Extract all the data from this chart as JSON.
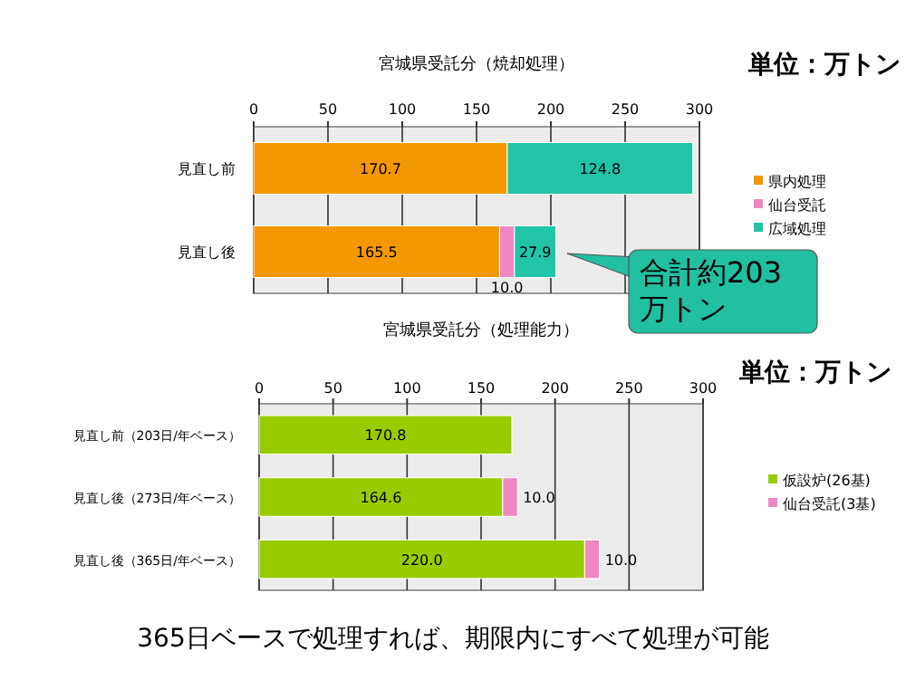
{
  "chart_data": [
    {
      "type": "bar",
      "orientation": "horizontal",
      "stacked": true,
      "title": "宮城県受託分（焼却処理）",
      "categories": [
        "見直し前",
        "見直し後"
      ],
      "xlim": [
        0,
        300
      ],
      "xticks": [
        0,
        50,
        100,
        150,
        200,
        250,
        300
      ],
      "grid": "x",
      "legend": "right",
      "series": [
        {
          "name": "県内処理",
          "color": "#f39800",
          "values": [
            170.7,
            165.5
          ],
          "value_labels": [
            "170.7",
            "165.5"
          ]
        },
        {
          "name": "仙台受託",
          "color": "#ee88c4",
          "values": [
            null,
            10.0
          ],
          "value_labels": [
            null,
            "10.0"
          ]
        },
        {
          "name": "広域処理",
          "color": "#22c4a8",
          "values": [
            124.8,
            27.9
          ],
          "value_labels": [
            "124.8",
            "27.9"
          ]
        }
      ],
      "annotations": [
        "単位：万トン",
        "合計約203万トン"
      ]
    },
    {
      "type": "bar",
      "orientation": "horizontal",
      "stacked": true,
      "title": "宮城県受託分（処理能力）",
      "categories": [
        "見直し前（203日/年ベース）",
        "見直し後（273日/年ベース）",
        "見直し後（365日/年ベース）"
      ],
      "xlim": [
        0,
        300
      ],
      "xticks": [
        0,
        50,
        100,
        150,
        200,
        250,
        300
      ],
      "grid": "x",
      "legend": "right",
      "series": [
        {
          "name": "仮設炉(26基)",
          "color": "#99cc00",
          "values": [
            170.8,
            164.6,
            220.0
          ],
          "value_labels": [
            "170.8",
            "164.6",
            "220.0"
          ]
        },
        {
          "name": "仙台受託(3基)",
          "color": "#ee88c4",
          "values": [
            null,
            10.0,
            10.0
          ],
          "value_labels": [
            null,
            "10.0",
            "10.0"
          ]
        }
      ],
      "annotations": [
        "単位：万トン",
        "365日ベースで処理すれば、期限内にすべて処理が可能"
      ]
    }
  ]
}
